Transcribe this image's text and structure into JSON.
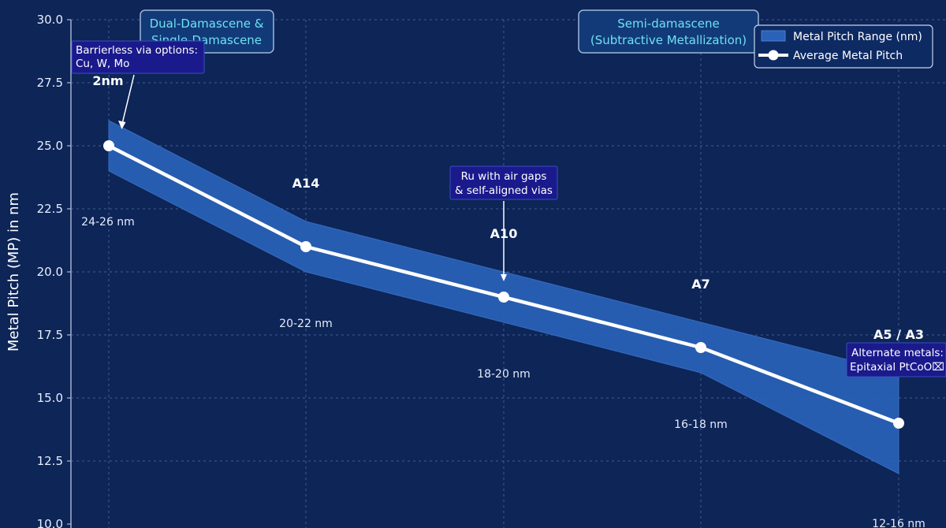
{
  "chart_data": {
    "type": "line",
    "ylabel": "Metal Pitch (MP) in nm",
    "xlabel": "",
    "ylim": [
      10.0,
      30.0
    ],
    "yticks": [
      "10.0",
      "12.5",
      "15.0",
      "17.5",
      "20.0",
      "22.5",
      "25.0",
      "27.5",
      "30.0"
    ],
    "grid": true,
    "categories": [
      "2nm",
      "A14",
      "A10",
      "A7",
      "A5 / A3"
    ],
    "series": [
      {
        "name": "Average Metal Pitch",
        "type": "line",
        "values": [
          25,
          21,
          19,
          17,
          14
        ]
      },
      {
        "name": "Metal Pitch Range (nm)",
        "type": "band",
        "lower": [
          24,
          20,
          18,
          16,
          12
        ],
        "upper": [
          26,
          22,
          20,
          18,
          16
        ]
      }
    ],
    "range_labels": [
      "24-26 nm",
      "20-22 nm",
      "18-20 nm",
      "16-18 nm",
      "12-16 nm"
    ],
    "legend": {
      "position": "top-right",
      "items": [
        "Metal Pitch Range (nm)",
        "Average Metal Pitch"
      ]
    },
    "era_labels": [
      {
        "lines": [
          "Dual-Damascene &",
          "Single-Damascene"
        ]
      },
      {
        "lines": [
          "Semi-damascene",
          "(Subtractive Metallization)"
        ]
      }
    ],
    "annotations": [
      {
        "lines": [
          "Barrierless via options:",
          "Cu, W, Mo"
        ],
        "target": "2nm"
      },
      {
        "lines": [
          "Ru with air gaps",
          "& self-aligned vias"
        ],
        "target": "A10"
      },
      {
        "lines": [
          "Alternate metals:",
          "Epitaxial PtCoO⌧"
        ],
        "target": "A5 / A3"
      }
    ],
    "colors": {
      "background": "#0d2557",
      "band": "#2a62b8",
      "line": "#ffffff",
      "grid": "#5a74a8",
      "era_text": "#6fe0f2",
      "callout_fill": "#1a1a8c"
    }
  }
}
